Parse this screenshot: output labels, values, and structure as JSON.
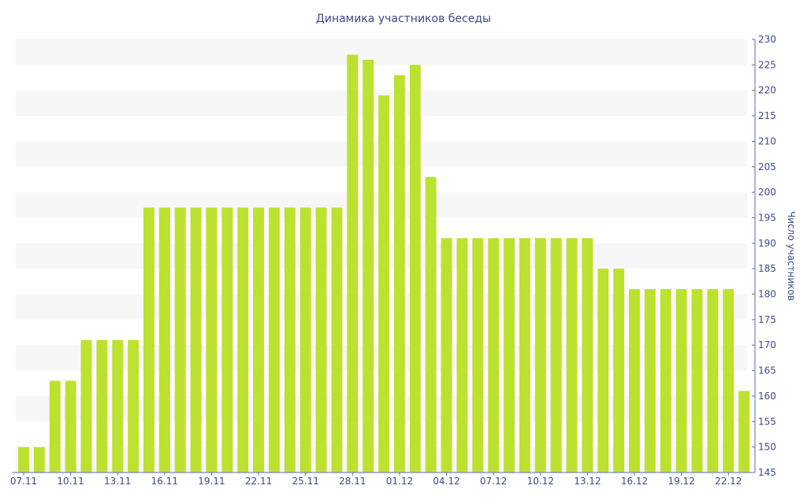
{
  "chart_data": {
    "type": "bar",
    "title": "Динамика участников беседы",
    "xlabel": "",
    "ylabel": "Число участников",
    "ylim": [
      145,
      230
    ],
    "yticks": [
      145,
      150,
      155,
      160,
      165,
      170,
      175,
      180,
      185,
      190,
      195,
      200,
      205,
      210,
      215,
      220,
      225,
      230
    ],
    "x_tick_labels": [
      "07.11",
      "10.11",
      "13.11",
      "16.11",
      "19.11",
      "22.11",
      "25.11",
      "28.11",
      "01.12",
      "04.12",
      "07.12",
      "10.12",
      "13.12",
      "16.12",
      "19.12",
      "22.12"
    ],
    "x_tick_every": 3,
    "categories": [
      "07.11",
      "08.11",
      "09.11",
      "10.11",
      "11.11",
      "12.11",
      "13.11",
      "14.11",
      "15.11",
      "16.11",
      "17.11",
      "18.11",
      "19.11",
      "20.11",
      "21.11",
      "22.11",
      "23.11",
      "24.11",
      "25.11",
      "26.11",
      "27.11",
      "28.11",
      "29.11",
      "30.11",
      "01.12",
      "02.12",
      "03.12",
      "04.12",
      "05.12",
      "06.12",
      "07.12",
      "08.12",
      "09.12",
      "10.12",
      "11.12",
      "12.12",
      "13.12",
      "14.12",
      "15.12",
      "16.12",
      "17.12",
      "18.12",
      "19.12",
      "20.12",
      "21.12",
      "22.12",
      "23.12"
    ],
    "values": [
      150,
      150,
      163,
      163,
      171,
      171,
      171,
      171,
      197,
      197,
      197,
      197,
      197,
      197,
      197,
      197,
      197,
      197,
      197,
      197,
      197,
      227,
      226,
      219,
      223,
      225,
      203,
      191,
      191,
      191,
      191,
      191,
      191,
      191,
      191,
      191,
      191,
      185,
      185,
      181,
      181,
      181,
      181,
      181,
      181,
      181,
      161
    ],
    "grid": "alternating horizontal bands",
    "colors": {
      "bar": "#bde12f",
      "text": "#3b4a8a",
      "axis": "#5a6bb0",
      "band": "#f7f7f7"
    }
  }
}
